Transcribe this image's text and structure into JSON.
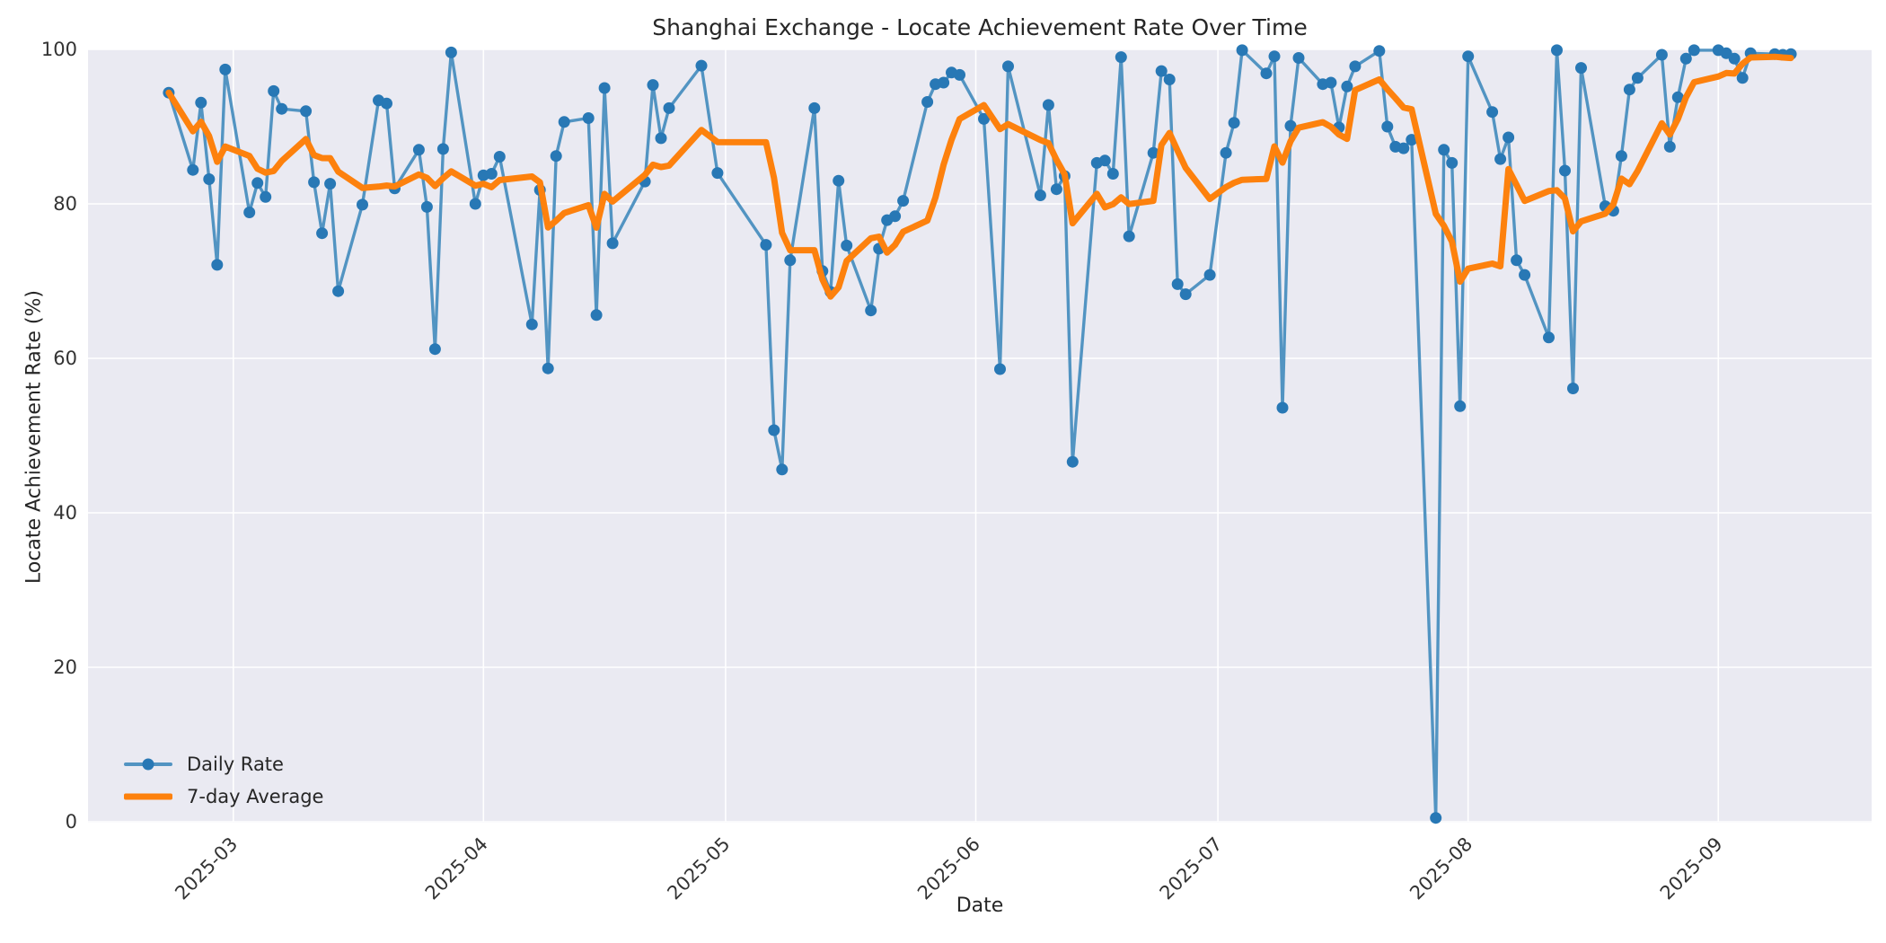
{
  "chart_data": {
    "type": "line",
    "title": "Shanghai Exchange - Locate Achievement Rate Over Time",
    "xlabel": "Date",
    "ylabel": "Locate Achievement Rate (%)",
    "ylim": [
      0,
      100
    ],
    "y_ticks": [
      0,
      20,
      40,
      60,
      80,
      100
    ],
    "x_ticks": [
      "2025-03",
      "2025-04",
      "2025-05",
      "2025-06",
      "2025-07",
      "2025-08",
      "2025-09"
    ],
    "x_margin_days": 10,
    "grid": true,
    "legend_position": "lower-left",
    "plot_background": "#eaeaf2",
    "grid_color": "#ffffff",
    "text_color": "#262626",
    "tick_color": "#333333",
    "rolling_window": 7,
    "series": [
      {
        "name": "Daily Rate",
        "type": "line-with-markers",
        "line_color": "#5294c2",
        "marker_color": "#2878b5",
        "dates": [
          "2025-02-21",
          "2025-02-24",
          "2025-02-25",
          "2025-02-26",
          "2025-02-27",
          "2025-02-28",
          "2025-03-03",
          "2025-03-04",
          "2025-03-05",
          "2025-03-06",
          "2025-03-07",
          "2025-03-10",
          "2025-03-11",
          "2025-03-12",
          "2025-03-13",
          "2025-03-14",
          "2025-03-17",
          "2025-03-19",
          "2025-03-20",
          "2025-03-21",
          "2025-03-24",
          "2025-03-25",
          "2025-03-26",
          "2025-03-27",
          "2025-03-28",
          "2025-03-31",
          "2025-04-01",
          "2025-04-02",
          "2025-04-03",
          "2025-04-07",
          "2025-04-08",
          "2025-04-09",
          "2025-04-10",
          "2025-04-11",
          "2025-04-14",
          "2025-04-15",
          "2025-04-16",
          "2025-04-17",
          "2025-04-21",
          "2025-04-22",
          "2025-04-23",
          "2025-04-24",
          "2025-04-28",
          "2025-04-30",
          "2025-05-06",
          "2025-05-07",
          "2025-05-08",
          "2025-05-09",
          "2025-05-12",
          "2025-05-13",
          "2025-05-14",
          "2025-05-15",
          "2025-05-16",
          "2025-05-19",
          "2025-05-20",
          "2025-05-21",
          "2025-05-22",
          "2025-05-23",
          "2025-05-26",
          "2025-05-27",
          "2025-05-28",
          "2025-05-29",
          "2025-05-30",
          "2025-06-02",
          "2025-06-04",
          "2025-06-05",
          "2025-06-09",
          "2025-06-10",
          "2025-06-11",
          "2025-06-12",
          "2025-06-13",
          "2025-06-16",
          "2025-06-17",
          "2025-06-18",
          "2025-06-19",
          "2025-06-20",
          "2025-06-23",
          "2025-06-24",
          "2025-06-25",
          "2025-06-26",
          "2025-06-27",
          "2025-06-30",
          "2025-07-02",
          "2025-07-03",
          "2025-07-04",
          "2025-07-07",
          "2025-07-08",
          "2025-07-09",
          "2025-07-10",
          "2025-07-11",
          "2025-07-14",
          "2025-07-15",
          "2025-07-16",
          "2025-07-17",
          "2025-07-18",
          "2025-07-21",
          "2025-07-22",
          "2025-07-23",
          "2025-07-24",
          "2025-07-25",
          "2025-07-28",
          "2025-07-29",
          "2025-07-30",
          "2025-07-31",
          "2025-08-01",
          "2025-08-04",
          "2025-08-05",
          "2025-08-06",
          "2025-08-07",
          "2025-08-08",
          "2025-08-11",
          "2025-08-12",
          "2025-08-13",
          "2025-08-14",
          "2025-08-15",
          "2025-08-18",
          "2025-08-19",
          "2025-08-20",
          "2025-08-21",
          "2025-08-22",
          "2025-08-25",
          "2025-08-26",
          "2025-08-27",
          "2025-08-28",
          "2025-08-29",
          "2025-09-01",
          "2025-09-02",
          "2025-09-03",
          "2025-09-04",
          "2025-09-05",
          "2025-09-08",
          "2025-09-09",
          "2025-09-10"
        ],
        "values": [
          94.4,
          84.4,
          93.1,
          83.2,
          72.1,
          97.4,
          78.9,
          82.7,
          80.9,
          94.6,
          92.3,
          92.0,
          82.8,
          76.2,
          82.6,
          68.7,
          79.9,
          93.4,
          93.0,
          82.0,
          87.0,
          79.6,
          61.2,
          87.1,
          99.6,
          80.0,
          83.7,
          83.9,
          86.1,
          64.4,
          81.8,
          58.7,
          86.2,
          90.6,
          91.1,
          65.6,
          95.0,
          74.9,
          82.9,
          95.4,
          88.5,
          92.4,
          97.9,
          84.0,
          74.7,
          50.7,
          45.6,
          72.7,
          92.4,
          71.3,
          68.6,
          83.0,
          74.6,
          66.2,
          74.2,
          77.9,
          78.4,
          80.4,
          93.2,
          95.5,
          95.7,
          97.0,
          96.7,
          91.0,
          58.6,
          97.8,
          81.1,
          92.8,
          81.9,
          83.6,
          46.6,
          85.3,
          85.6,
          83.9,
          99.0,
          75.8,
          86.6,
          97.2,
          96.1,
          69.6,
          68.3,
          70.8,
          86.6,
          90.5,
          99.9,
          96.9,
          99.1,
          53.6,
          90.1,
          98.9,
          95.5,
          95.7,
          89.9,
          95.2,
          97.8,
          99.8,
          90.0,
          87.4,
          87.2,
          88.3,
          0.5,
          87.0,
          85.3,
          53.8,
          99.1,
          91.9,
          85.8,
          88.6,
          72.7,
          70.8,
          62.7,
          99.9,
          84.3,
          56.1,
          97.6,
          79.7,
          79.1,
          86.2,
          94.8,
          96.3,
          99.3,
          87.4,
          93.8,
          98.8,
          99.9,
          99.9,
          99.5,
          98.8,
          96.3,
          99.5,
          99.4,
          99.3,
          99.4
        ]
      },
      {
        "name": "7-day Average",
        "type": "line",
        "line_color": "#fd810d",
        "derived": "rolling-mean-of-daily-rate"
      }
    ]
  }
}
